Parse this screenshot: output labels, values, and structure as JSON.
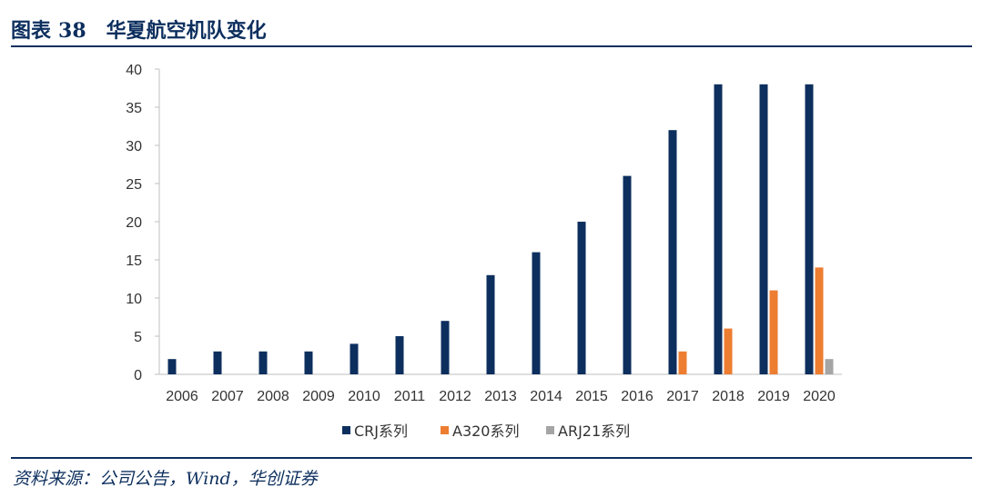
{
  "header": {
    "label": "图表",
    "number": "38",
    "title": "华夏航空机队变化"
  },
  "source": "资料来源：公司公告，Wind，华创证券",
  "chart_data": {
    "type": "bar",
    "title": "",
    "xlabel": "",
    "ylabel": "",
    "ylim": [
      0,
      40
    ],
    "yticks": [
      0,
      5,
      10,
      15,
      20,
      25,
      30,
      35,
      40
    ],
    "grid": false,
    "legend_position": "bottom",
    "categories": [
      "2006",
      "2007",
      "2008",
      "2009",
      "2010",
      "2011",
      "2012",
      "2013",
      "2014",
      "2015",
      "2016",
      "2017",
      "2018",
      "2019",
      "2020"
    ],
    "series": [
      {
        "name": "CRJ系列",
        "color": "#0d2f5e",
        "values": [
          2,
          3,
          3,
          3,
          4,
          5,
          7,
          13,
          16,
          20,
          26,
          32,
          38,
          38,
          38
        ]
      },
      {
        "name": "A320系列",
        "color": "#ed7d31",
        "values": [
          0,
          0,
          0,
          0,
          0,
          0,
          0,
          0,
          0,
          0,
          0,
          3,
          6,
          11,
          14
        ]
      },
      {
        "name": "ARJ21系列",
        "color": "#a5a5a5",
        "values": [
          0,
          0,
          0,
          0,
          0,
          0,
          0,
          0,
          0,
          0,
          0,
          0,
          0,
          0,
          2
        ]
      }
    ]
  }
}
